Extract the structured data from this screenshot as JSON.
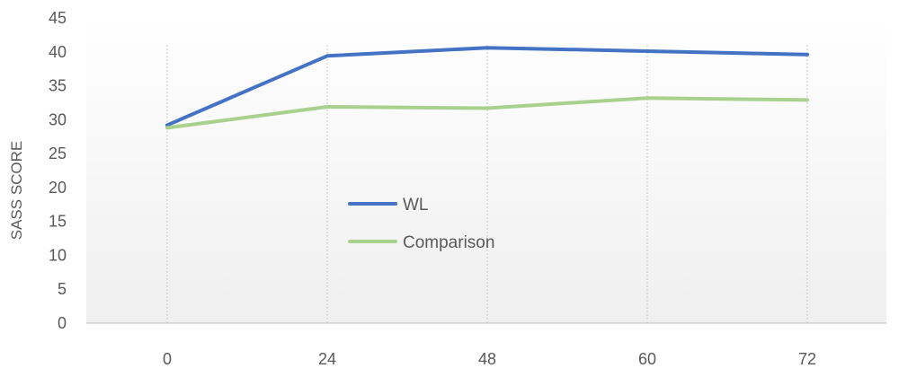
{
  "chart_data": {
    "type": "line",
    "categories": [
      "0",
      "24",
      "48",
      "60",
      "72"
    ],
    "series": [
      {
        "name": "WL",
        "values": [
          29.2,
          39.4,
          40.6,
          40.1,
          39.6
        ],
        "color": "#4472c4"
      },
      {
        "name": "Comparison",
        "values": [
          28.8,
          31.9,
          31.7,
          33.2,
          32.9
        ],
        "color": "#a9d18e"
      }
    ],
    "ylabel": "SASS SCORE",
    "xlabel": "",
    "ylim": [
      0,
      45
    ],
    "yticks": [
      0,
      5,
      10,
      15,
      20,
      25,
      30,
      35,
      40,
      45
    ],
    "grid": "vertical dotted lines at categories",
    "legend": "center-left inside plot area",
    "plot_background": "gradient white to light gray"
  }
}
